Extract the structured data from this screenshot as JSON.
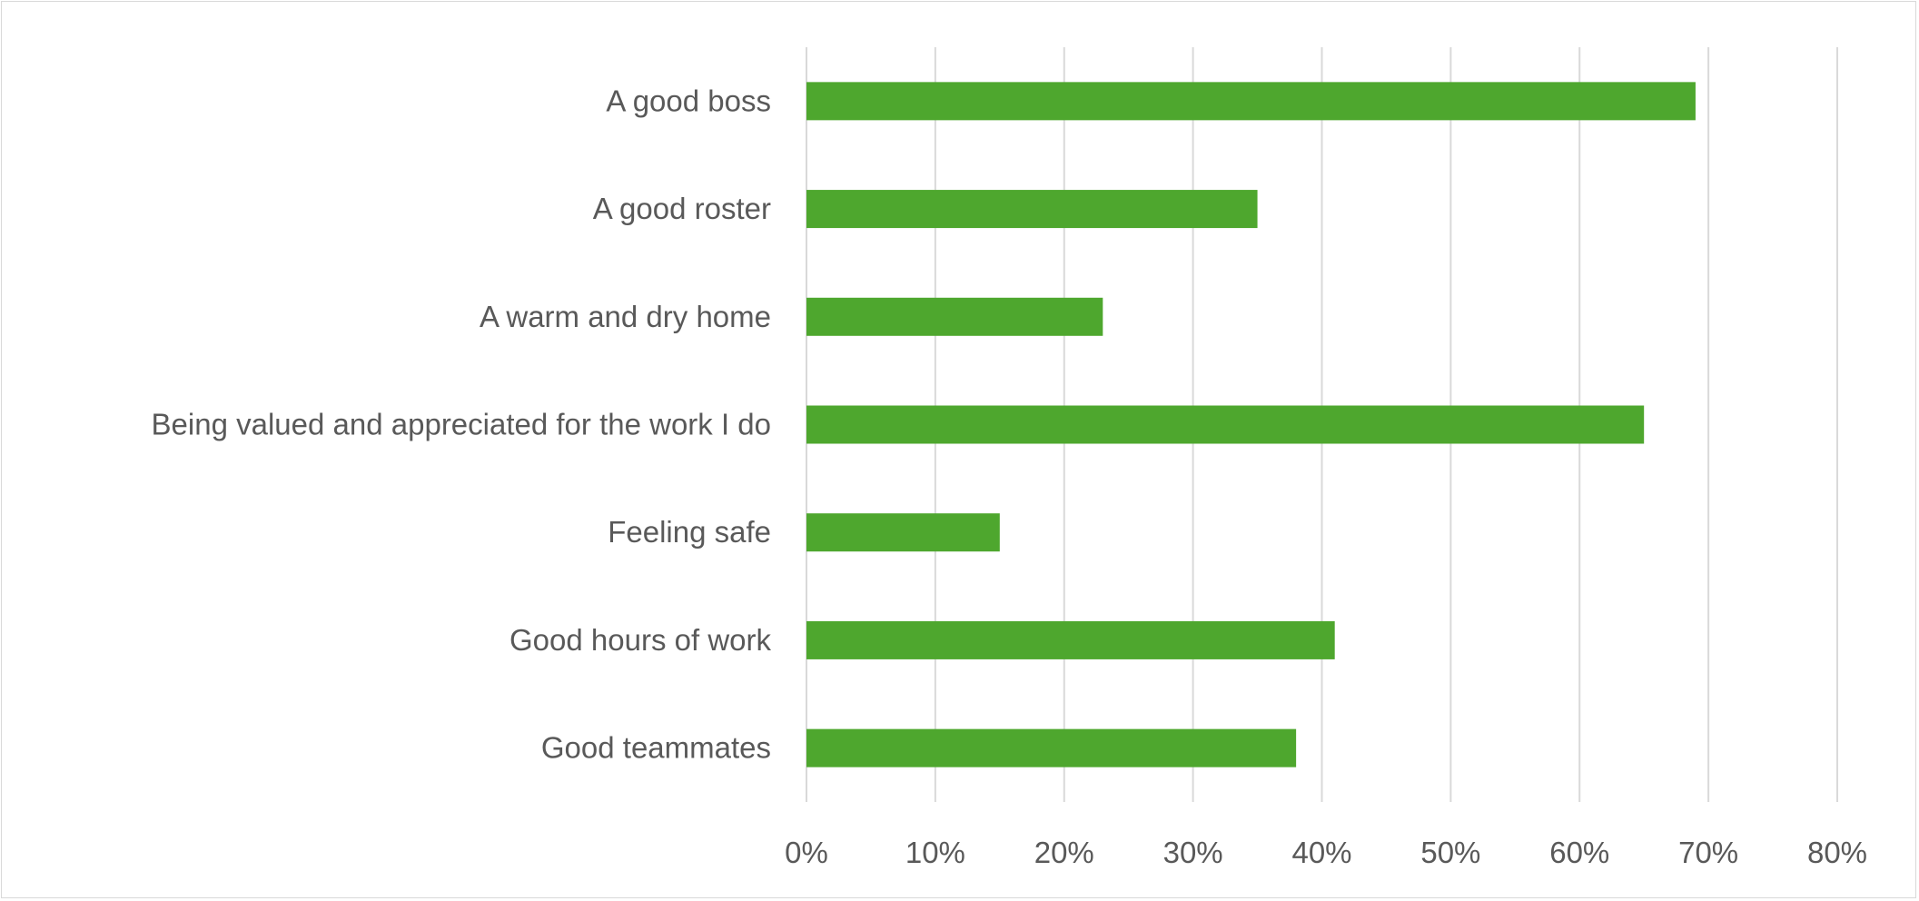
{
  "chart_data": {
    "type": "bar",
    "orientation": "horizontal",
    "categories": [
      "A good boss",
      "A good roster",
      "A warm and dry home",
      "Being valued and appreciated for the work I do",
      "Feeling safe",
      "Good hours of work",
      "Good teammates"
    ],
    "values": [
      69,
      35,
      23,
      65,
      15,
      41,
      38
    ],
    "xlim": [
      0,
      80
    ],
    "xticks": [
      "0%",
      "10%",
      "20%",
      "30%",
      "40%",
      "50%",
      "60%",
      "70%",
      "80%"
    ],
    "grid": "vertical",
    "bar_color": "#4ea72e",
    "grid_color": "#d9d9d9",
    "text_color": "#595959"
  }
}
